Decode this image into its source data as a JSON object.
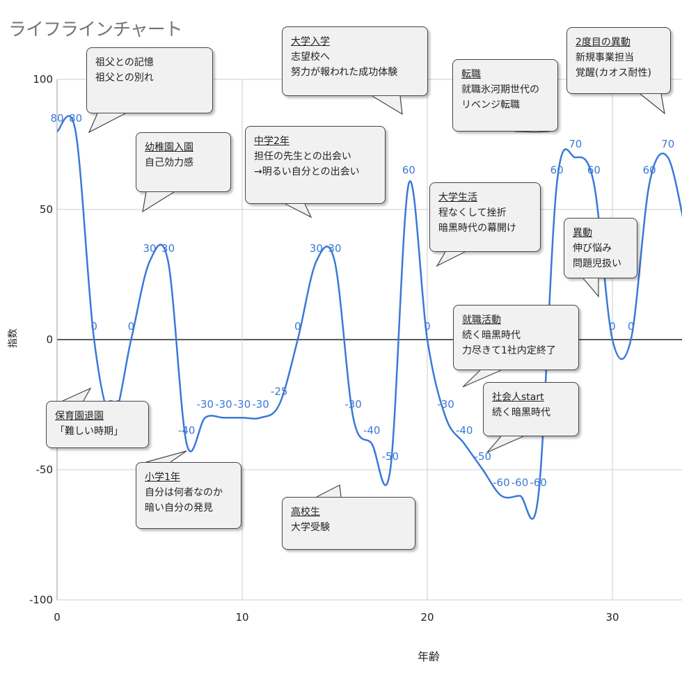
{
  "title": "ライフラインチャート",
  "chart_data": {
    "type": "line",
    "title": "ライフラインチャート",
    "xlabel": "年齢",
    "ylabel": "指数",
    "xlim": [
      0,
      34
    ],
    "ylim": [
      -100,
      100
    ],
    "x_ticks": [
      "0",
      "10",
      "20",
      "30"
    ],
    "y_ticks": [
      "100",
      "50",
      "0",
      "-50",
      "-100"
    ],
    "grid": true,
    "line_color": "#3a78d8",
    "points": [
      {
        "x": 0,
        "y": 80,
        "label": "80"
      },
      {
        "x": 1,
        "y": 80,
        "label": "80"
      },
      {
        "x": 2,
        "y": 0,
        "label": "0"
      },
      {
        "x": 3,
        "y": -30,
        "label": "-30"
      },
      {
        "x": 4,
        "y": 0,
        "label": "0"
      },
      {
        "x": 5,
        "y": 30,
        "label": "30"
      },
      {
        "x": 6,
        "y": 30,
        "label": "30"
      },
      {
        "x": 7,
        "y": -40,
        "label": "-40"
      },
      {
        "x": 8,
        "y": -30,
        "label": "-30"
      },
      {
        "x": 9,
        "y": -30,
        "label": "-30"
      },
      {
        "x": 10,
        "y": -30,
        "label": "-30"
      },
      {
        "x": 11,
        "y": -30,
        "label": "-30"
      },
      {
        "x": 12,
        "y": -25,
        "label": "-25"
      },
      {
        "x": 13,
        "y": 0,
        "label": "0"
      },
      {
        "x": 14,
        "y": 30,
        "label": "30"
      },
      {
        "x": 15,
        "y": 30,
        "label": "30"
      },
      {
        "x": 16,
        "y": -30,
        "label": "-30"
      },
      {
        "x": 17,
        "y": -40,
        "label": "-40"
      },
      {
        "x": 18,
        "y": -50,
        "label": "-50"
      },
      {
        "x": 19,
        "y": 60,
        "label": "60"
      },
      {
        "x": 20,
        "y": 0,
        "label": "0"
      },
      {
        "x": 21,
        "y": -30,
        "label": "-30"
      },
      {
        "x": 22,
        "y": -40,
        "label": "-40"
      },
      {
        "x": 23,
        "y": -50,
        "label": "-50"
      },
      {
        "x": 24,
        "y": -60,
        "label": "-60"
      },
      {
        "x": 25,
        "y": -60,
        "label": "-60"
      },
      {
        "x": 26,
        "y": -60,
        "label": "-60"
      },
      {
        "x": 27,
        "y": 60,
        "label": "60"
      },
      {
        "x": 28,
        "y": 70,
        "label": "70"
      },
      {
        "x": 29,
        "y": 60,
        "label": "60"
      },
      {
        "x": 30,
        "y": 0,
        "label": "0"
      },
      {
        "x": 31,
        "y": 0,
        "label": "0"
      },
      {
        "x": 32,
        "y": 60,
        "label": "60"
      },
      {
        "x": 33,
        "y": 70,
        "label": "70"
      },
      {
        "x": 34,
        "y": 40,
        "label": ""
      }
    ],
    "annotations": [
      {
        "x": 2,
        "y": 70,
        "title": "",
        "lines": [
          "祖父との記憶",
          "祖父との別れ"
        ]
      },
      {
        "x": 5,
        "y": 50,
        "title": "幼稚園入園",
        "lines": [
          "自己効力感"
        ]
      },
      {
        "x": 3,
        "y": -20,
        "title": "保育園退園",
        "lines": [
          "「難しい時期」"
        ]
      },
      {
        "x": 7,
        "y": -42,
        "title": "小学1年",
        "lines": [
          "自分は何者なのか",
          "暗い自分の発見"
        ]
      },
      {
        "x": 13,
        "y": 47,
        "title": "中学2年",
        "lines": [
          "担任の先生との出会い",
          "→明るい自分との出会い"
        ]
      },
      {
        "x": 19,
        "y": 87,
        "title": "大学入学",
        "lines": [
          "志望校へ",
          "努力が報われた成功体験"
        ]
      },
      {
        "x": 15,
        "y": -56,
        "title": "高校生",
        "lines": [
          "大学受験"
        ]
      },
      {
        "x": 26,
        "y": 80,
        "title": "転職",
        "lines": [
          "就職氷河期世代の",
          "リベンジ転職"
        ]
      },
      {
        "x": 20,
        "y": 29,
        "title": "大学生活",
        "lines": [
          "程なくして挫折",
          "暗黒時代の幕開け"
        ]
      },
      {
        "x": 33,
        "y": 87,
        "title": "2度目の異動",
        "lines": [
          "新規事業担当",
          "覚醒(カオス耐性)"
        ]
      },
      {
        "x": 29,
        "y": 17,
        "title": "異動",
        "lines": [
          "伸び悩み",
          "問題児扱い"
        ]
      },
      {
        "x": 22,
        "y": -18,
        "title": "就職活動",
        "lines": [
          "続く暗黒時代",
          "力尽きて1社内定終了"
        ]
      },
      {
        "x": 24,
        "y": -41,
        "title": "社会人start",
        "lines": [
          "続く暗黒時代"
        ]
      }
    ]
  }
}
